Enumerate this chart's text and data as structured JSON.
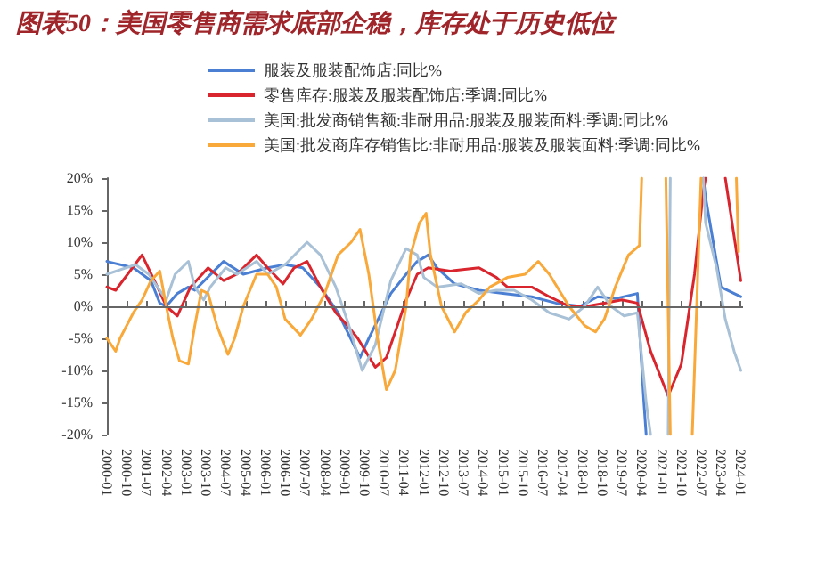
{
  "chart_data": {
    "type": "line",
    "title": "图表50：美国零售商需求底部企稳，库存处于历史低位",
    "xlim": [
      "2000-01",
      "2024-02"
    ],
    "xticks": [
      "2000-01",
      "2000-10",
      "2001-07",
      "2002-04",
      "2003-01",
      "2003-10",
      "2004-07",
      "2005-04",
      "2006-01",
      "2006-10",
      "2007-07",
      "2008-04",
      "2009-01",
      "2009-10",
      "2010-07",
      "2011-04",
      "2012-01",
      "2012-10",
      "2013-07",
      "2014-04",
      "2015-01",
      "2015-10",
      "2016-07",
      "2017-04",
      "2018-01",
      "2018-10",
      "2019-07",
      "2020-04",
      "2021-01",
      "2021-10",
      "2022-07",
      "2023-04",
      "2024-01"
    ],
    "ylim": [
      -20,
      20
    ],
    "yticks": [
      {
        "value": -20,
        "label": "-20%"
      },
      {
        "value": -15,
        "label": "-15%"
      },
      {
        "value": -10,
        "label": "-10%"
      },
      {
        "value": -5,
        "label": "-5%"
      },
      {
        "value": 0,
        "label": "0%"
      },
      {
        "value": 5,
        "label": "5%"
      },
      {
        "value": 10,
        "label": "10%"
      },
      {
        "value": 15,
        "label": "15%"
      },
      {
        "value": 20,
        "label": "20%"
      }
    ],
    "ref_lines": [
      {
        "axis": "y",
        "value": 0,
        "color": "#666666"
      }
    ],
    "legend": "top",
    "marker": "none",
    "line_style": "solid",
    "series": [
      {
        "name": "服装及服装配饰店:同比%",
        "color": "#4a7fd4",
        "x": [
          "2000-01",
          "2001-01",
          "2001-09",
          "2002-01",
          "2002-04",
          "2002-09",
          "2003-02",
          "2003-05",
          "2004-06",
          "2005-03",
          "2006-02",
          "2006-10",
          "2007-06",
          "2008-02",
          "2008-10",
          "2009-08",
          "2009-12",
          "2010-10",
          "2011-05",
          "2011-10",
          "2012-03",
          "2012-07",
          "2013-03",
          "2014-02",
          "2015-01",
          "2016-02",
          "2017-01",
          "2017-12",
          "2018-08",
          "2019-04",
          "2020-02",
          "2020-05",
          "2020-06",
          "2021-06",
          "2022-08",
          "2022-09",
          "2022-12",
          "2023-04",
          "2023-10",
          "2024-01"
        ],
        "values": [
          7,
          6,
          4,
          0.5,
          0,
          2,
          3,
          2.5,
          7,
          5,
          6,
          6.5,
          6,
          3,
          -1,
          -8,
          -5,
          2,
          5,
          7,
          8,
          6,
          3.5,
          2.5,
          2,
          1.5,
          0.5,
          0,
          1.5,
          1.2,
          2,
          -15,
          -20,
          null,
          20,
          17,
          11,
          3,
          2,
          1.5
        ]
      },
      {
        "name": "零售库存:服装及服装配饰店:季调:同比%",
        "color": "#d9262e",
        "x": [
          "2000-01",
          "2000-05",
          "2001-05",
          "2001-12",
          "2002-04",
          "2002-09",
          "2003-03",
          "2003-11",
          "2004-06",
          "2004-12",
          "2005-09",
          "2006-02",
          "2006-09",
          "2007-02",
          "2007-08",
          "2008-02",
          "2008-09",
          "2009-01",
          "2009-07",
          "2010-03",
          "2010-08",
          "2011-01",
          "2011-05",
          "2011-10",
          "2012-03",
          "2013-01",
          "2014-02",
          "2014-10",
          "2015-03",
          "2016-02",
          "2016-10",
          "2017-07",
          "2018-03",
          "2018-11",
          "2019-07",
          "2020-02",
          "2020-08",
          "2021-04",
          "2021-10",
          "2022-04",
          "2022-08",
          "2022-09",
          "2023-01",
          "2023-06",
          "2024-01"
        ],
        "values": [
          3,
          2.5,
          8,
          3,
          0,
          -1.5,
          3,
          6,
          4,
          5,
          8,
          6,
          3.5,
          6,
          7,
          3,
          -1,
          -2.5,
          -5,
          -9.5,
          -8,
          -3,
          1,
          5,
          6,
          5.5,
          6,
          4.5,
          3,
          3,
          1.5,
          0,
          0,
          0.5,
          1,
          0.5,
          -7,
          -14,
          -9,
          5,
          18,
          20,
          null,
          20,
          4
        ]
      },
      {
        "name": "美国:批发商销售额:非耐用品:服装及服装面料:季调:同比%",
        "color": "#a9c1d6",
        "x": [
          "2000-01",
          "2001-02",
          "2001-08",
          "2001-12",
          "2002-04",
          "2002-08",
          "2003-02",
          "2003-05",
          "2003-09",
          "2003-12",
          "2004-07",
          "2004-12",
          "2005-09",
          "2006-02",
          "2006-10",
          "2007-08",
          "2008-02",
          "2008-09",
          "2009-03",
          "2009-09",
          "2010-03",
          "2010-10",
          "2011-05",
          "2011-10",
          "2012-01",
          "2012-07",
          "2013-06",
          "2014-02",
          "2014-10",
          "2015-06",
          "2016-02",
          "2016-10",
          "2017-07",
          "2018-02",
          "2018-08",
          "2019-02",
          "2019-08",
          "2020-02",
          "2020-06",
          "2020-08",
          "2020-12",
          "2021-04",
          "2021-05",
          "2022-01",
          "2022-08",
          "2022-09",
          "2023-02",
          "2023-06",
          "2023-10",
          "2024-01"
        ],
        "values": [
          5,
          6.5,
          5,
          3,
          1,
          5,
          7,
          3,
          1,
          3,
          6,
          5,
          7,
          5,
          6.5,
          10,
          8,
          3,
          -3,
          -10,
          -6,
          4,
          9,
          8,
          4.5,
          3,
          3.5,
          2,
          2.5,
          2.5,
          1,
          -1,
          -2,
          0,
          3,
          0,
          -1.5,
          -1,
          -15,
          -20,
          null,
          -20,
          20,
          null,
          20,
          13,
          6,
          -2,
          -7,
          -10
        ]
      },
      {
        "name": "美国:批发商库存销售比:非耐用品:服装及服装面料:季调:同比%",
        "color": "#f9a83a",
        "x": [
          "2000-01",
          "2000-05",
          "2000-07",
          "2001-01",
          "2001-05",
          "2001-09",
          "2002-01",
          "2002-04",
          "2002-07",
          "2002-10",
          "2003-02",
          "2003-05",
          "2003-08",
          "2003-11",
          "2004-03",
          "2004-08",
          "2004-11",
          "2005-03",
          "2005-09",
          "2006-02",
          "2006-06",
          "2006-10",
          "2007-05",
          "2007-10",
          "2008-04",
          "2008-10",
          "2009-04",
          "2009-08",
          "2009-12",
          "2010-04",
          "2010-08",
          "2010-12",
          "2011-05",
          "2011-07",
          "2011-11",
          "2012-02",
          "2012-04",
          "2012-09",
          "2013-03",
          "2013-08",
          "2014-02",
          "2014-07",
          "2015-03",
          "2015-11",
          "2016-05",
          "2016-10",
          "2017-07",
          "2018-02",
          "2018-07",
          "2018-11",
          "2019-04",
          "2019-10",
          "2020-03",
          "2020-04",
          "2020-10",
          "2021-03",
          "2021-05",
          "2021-12",
          "2022-03",
          "2022-07",
          "2023-06",
          "2023-11",
          "2023-12"
        ],
        "values": [
          -5,
          -7,
          -5,
          -1,
          1,
          4,
          5.5,
          0,
          -5,
          -8.5,
          -9,
          -3,
          2.5,
          2,
          -3,
          -7.5,
          -5,
          0,
          5,
          5,
          3,
          -2,
          -4.5,
          -2,
          2,
          8,
          10,
          12,
          5,
          -5,
          -13,
          -10,
          0,
          8,
          13,
          14.5,
          8,
          0,
          -4,
          -1,
          1,
          3,
          4.5,
          5,
          7,
          5,
          0,
          -3,
          -4,
          -2,
          3,
          8,
          9.5,
          20,
          null,
          20,
          -20,
          null,
          -20,
          20,
          null,
          20,
          8.5
        ]
      }
    ]
  }
}
